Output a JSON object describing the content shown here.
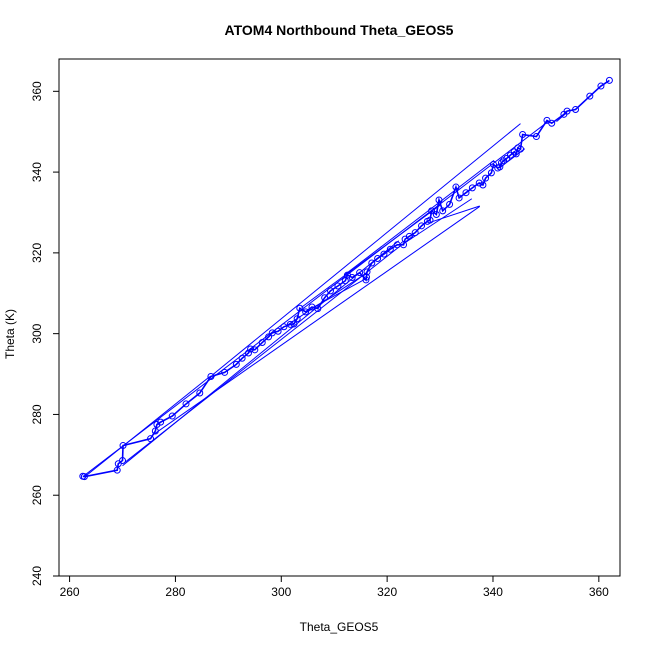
{
  "chart_data": {
    "type": "scatter",
    "title": "ATOM4 Northbound Theta_GEOS5",
    "xlabel": "Theta_GEOS5",
    "ylabel": "Theta (K)",
    "xlim": [
      258,
      364
    ],
    "ylim": [
      240,
      368
    ],
    "xticks": [
      260,
      280,
      300,
      320,
      340,
      360
    ],
    "yticks": [
      240,
      260,
      280,
      300,
      320,
      340,
      360
    ],
    "grid": false,
    "legend": "none",
    "color": "#0000ff",
    "series": [
      {
        "marker": "circle-open",
        "line": true,
        "points": [
          [
            262.5,
            264.7
          ],
          [
            262.8,
            264.6
          ],
          [
            269.0,
            266.2
          ],
          [
            269.2,
            267.8
          ],
          [
            270.0,
            268.6
          ],
          [
            270.1,
            272.3
          ],
          [
            275.3,
            274.0
          ],
          [
            276.2,
            275.9
          ],
          [
            276.5,
            277.5
          ],
          [
            277.2,
            278.1
          ],
          [
            279.4,
            279.6
          ],
          [
            282.0,
            282.6
          ],
          [
            284.6,
            285.3
          ],
          [
            286.7,
            289.4
          ],
          [
            289.3,
            290.4
          ],
          [
            291.5,
            292.4
          ],
          [
            292.6,
            293.9
          ],
          [
            293.8,
            295.2
          ],
          [
            294.2,
            296.2
          ],
          [
            295.0,
            296.0
          ],
          [
            296.4,
            297.8
          ],
          [
            297.6,
            299.2
          ],
          [
            298.3,
            300.2
          ],
          [
            299.4,
            300.6
          ],
          [
            300.5,
            301.7
          ],
          [
            301.7,
            302.3
          ],
          [
            302.4,
            302.4
          ],
          [
            303.0,
            303.7
          ],
          [
            303.5,
            306.3
          ],
          [
            304.6,
            305.4
          ],
          [
            305.8,
            306.6
          ],
          [
            306.9,
            306.2
          ],
          [
            308.2,
            308.9
          ],
          [
            309.3,
            310.6
          ],
          [
            310.7,
            311.8
          ],
          [
            312.1,
            313.1
          ],
          [
            312.5,
            314.5
          ],
          [
            313.4,
            313.9
          ],
          [
            314.8,
            315.1
          ],
          [
            316.0,
            313.3
          ],
          [
            316.1,
            314.0
          ],
          [
            316.2,
            315.3
          ],
          [
            317.1,
            317.5
          ],
          [
            318.2,
            318.6
          ],
          [
            319.4,
            319.7
          ],
          [
            320.6,
            320.9
          ],
          [
            321.9,
            322.0
          ],
          [
            323.1,
            322.0
          ],
          [
            323.4,
            323.4
          ],
          [
            324.2,
            324.1
          ],
          [
            325.3,
            325.0
          ],
          [
            326.5,
            326.7
          ],
          [
            327.6,
            327.8
          ],
          [
            328.1,
            328.1
          ],
          [
            328.4,
            330.4
          ],
          [
            329.3,
            329.5
          ],
          [
            329.8,
            333.1
          ],
          [
            330.5,
            330.4
          ],
          [
            331.8,
            332.0
          ],
          [
            333.0,
            336.3
          ],
          [
            333.6,
            333.6
          ],
          [
            334.9,
            334.9
          ],
          [
            336.1,
            336.1
          ],
          [
            337.4,
            337.3
          ],
          [
            338.1,
            336.8
          ],
          [
            338.6,
            338.5
          ],
          [
            339.7,
            339.8
          ],
          [
            340.1,
            341.9
          ],
          [
            340.9,
            341.0
          ],
          [
            341.3,
            341.3
          ],
          [
            341.6,
            342.3
          ],
          [
            342.0,
            342.8
          ],
          [
            342.6,
            343.4
          ],
          [
            343.3,
            344.2
          ],
          [
            344.0,
            345.0
          ],
          [
            344.4,
            344.5
          ],
          [
            344.7,
            346.0
          ],
          [
            345.2,
            345.7
          ],
          [
            345.6,
            349.3
          ],
          [
            348.2,
            348.8
          ],
          [
            350.2,
            352.8
          ],
          [
            351.1,
            352.1
          ],
          [
            353.4,
            354.3
          ],
          [
            354.0,
            355.1
          ],
          [
            355.6,
            355.5
          ],
          [
            358.3,
            358.8
          ],
          [
            360.4,
            361.3
          ],
          [
            362.0,
            362.7
          ]
        ]
      }
    ],
    "segments": [
      [
        262.7,
        264.8,
        350.5,
        352.6
      ],
      [
        270.0,
        267.3,
        322.2,
        323.0
      ],
      [
        270.5,
        268.2,
        325.0,
        324.3
      ],
      [
        275.6,
        274.8,
        337.5,
        331.5
      ],
      [
        287.0,
        289.8,
        345.2,
        352.0
      ],
      [
        303.8,
        306.5,
        330.0,
        331.8
      ],
      [
        312.0,
        314.6,
        340.2,
        342.9
      ],
      [
        301.0,
        302.0,
        316.2,
        315.1
      ],
      [
        306.0,
        306.5,
        316.0,
        313.6
      ],
      [
        323.0,
        322.2,
        336.0,
        333.4
      ],
      [
        328.0,
        327.5,
        337.5,
        331.6
      ],
      [
        341.2,
        341.0,
        346.0,
        345.8
      ],
      [
        352.0,
        352.5,
        354.0,
        354.8
      ],
      [
        286.5,
        289.4,
        262.9,
        264.6
      ]
    ]
  }
}
